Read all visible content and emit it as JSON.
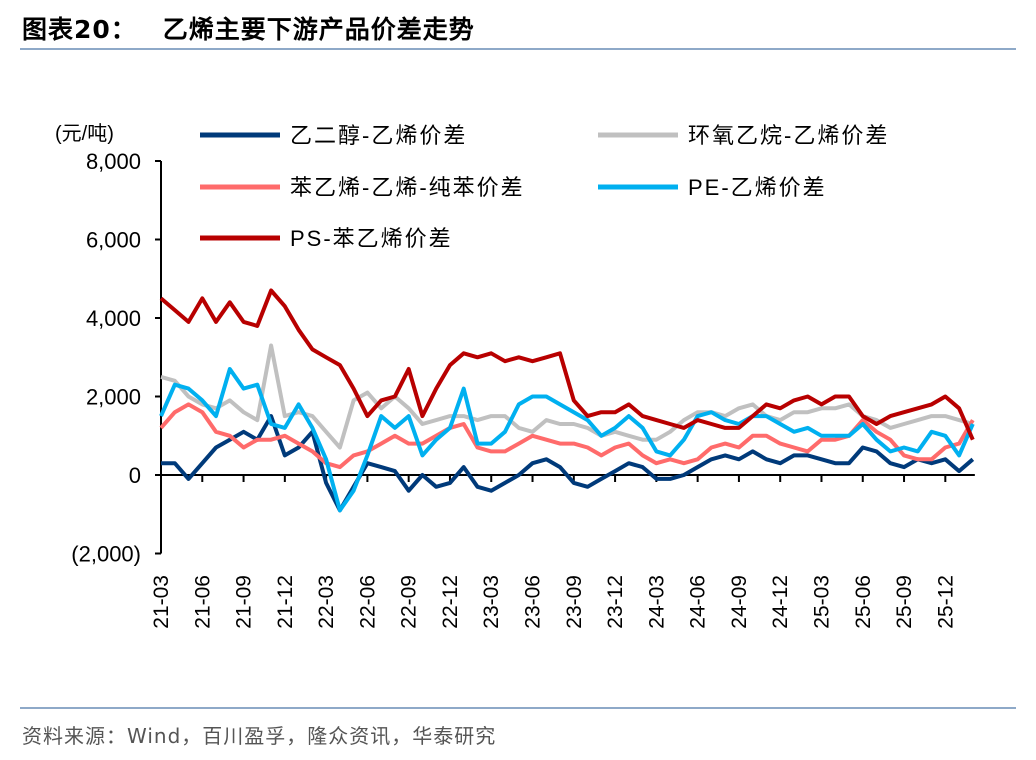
{
  "header": {
    "figure_no": "图表20：",
    "title": "乙烯主要下游产品价差走势"
  },
  "footer": {
    "source": "资料来源：Wind，百川盈孚，隆众资讯，华泰研究"
  },
  "chart_data": {
    "type": "line",
    "title": "乙烯主要下游产品价差走势",
    "ylabel": "(元/吨)",
    "xlabel": "",
    "ylim": [
      -2000,
      8000
    ],
    "yticks": [
      -2000,
      0,
      2000,
      4000,
      6000,
      8000
    ],
    "ytick_labels": [
      "(2,000)",
      "0",
      "2,000",
      "4,000",
      "6,000",
      "8,000"
    ],
    "xtick_labels": [
      "21-03",
      "21-06",
      "21-09",
      "21-12",
      "22-03",
      "22-06",
      "22-09",
      "22-12",
      "23-03",
      "23-06",
      "23-09",
      "23-12",
      "24-03",
      "24-06",
      "24-09",
      "24-12",
      "25-03",
      "25-06",
      "25-09",
      "25-12"
    ],
    "x_start": "21-03",
    "x_step": "1 month",
    "legend_position": "top",
    "grid": false,
    "series": [
      {
        "name": "乙二醇-乙烯价差",
        "color": "#003a7a",
        "values": [
          300,
          300,
          -100,
          300,
          700,
          900,
          1100,
          900,
          1500,
          500,
          700,
          1100,
          -200,
          -900,
          -300,
          300,
          200,
          100,
          -400,
          0,
          -300,
          -200,
          200,
          -300,
          -400,
          -200,
          0,
          300,
          400,
          200,
          -200,
          -300,
          -100,
          100,
          300,
          200,
          -100,
          -100,
          0,
          200,
          400,
          500,
          400,
          600,
          400,
          300,
          500,
          500,
          400,
          300,
          300,
          700,
          600,
          300,
          200,
          400,
          300,
          400,
          100,
          400
        ]
      },
      {
        "name": "环氧乙烷-乙烯价差",
        "color": "#c0c0c0",
        "values": [
          2500,
          2400,
          2000,
          1800,
          1700,
          1900,
          1600,
          1400,
          3300,
          1500,
          1600,
          1500,
          1100,
          700,
          1900,
          2100,
          1700,
          2000,
          1700,
          1300,
          1400,
          1500,
          1500,
          1400,
          1500,
          1500,
          1200,
          1100,
          1400,
          1300,
          1300,
          1200,
          1000,
          1100,
          1000,
          900,
          900,
          1100,
          1400,
          1600,
          1600,
          1500,
          1700,
          1800,
          1500,
          1400,
          1600,
          1600,
          1700,
          1700,
          1800,
          1500,
          1400,
          1200,
          1300,
          1400,
          1500,
          1500,
          1400,
          1300
        ]
      },
      {
        "name": "苯乙烯-乙烯-纯苯价差",
        "color": "#ff6b6b",
        "values": [
          1200,
          1600,
          1800,
          1600,
          1100,
          1000,
          700,
          900,
          900,
          1000,
          800,
          600,
          300,
          200,
          500,
          600,
          800,
          1000,
          800,
          800,
          1000,
          1200,
          1300,
          700,
          600,
          600,
          800,
          1000,
          900,
          800,
          800,
          700,
          500,
          700,
          800,
          500,
          300,
          400,
          300,
          400,
          700,
          800,
          700,
          1000,
          1000,
          800,
          700,
          600,
          900,
          900,
          1000,
          1400,
          1100,
          900,
          500,
          400,
          400,
          700,
          800,
          1400
        ]
      },
      {
        "name": "PE-乙烯价差",
        "color": "#00b0f0",
        "values": [
          1500,
          2300,
          2200,
          1900,
          1500,
          2700,
          2200,
          2300,
          1300,
          1200,
          1800,
          1200,
          400,
          -900,
          -400,
          500,
          1500,
          1200,
          1500,
          500,
          900,
          1200,
          2200,
          800,
          800,
          1100,
          1800,
          2000,
          2000,
          1800,
          1600,
          1400,
          1000,
          1200,
          1500,
          1200,
          600,
          500,
          900,
          1500,
          1600,
          1400,
          1300,
          1500,
          1500,
          1300,
          1100,
          1200,
          1000,
          1000,
          1000,
          1300,
          900,
          600,
          700,
          600,
          1100,
          1000,
          500,
          1300
        ]
      },
      {
        "name": "PS-苯乙烯价差",
        "color": "#b80000",
        "values": [
          4500,
          4200,
          3900,
          4500,
          3900,
          4400,
          3900,
          3800,
          4700,
          4300,
          3700,
          3200,
          3000,
          2800,
          2200,
          1500,
          1900,
          2000,
          2700,
          1500,
          2200,
          2800,
          3100,
          3000,
          3100,
          2900,
          3000,
          2900,
          3000,
          3100,
          1900,
          1500,
          1600,
          1600,
          1800,
          1500,
          1400,
          1300,
          1200,
          1400,
          1300,
          1200,
          1200,
          1500,
          1800,
          1700,
          1900,
          2000,
          1800,
          2000,
          2000,
          1500,
          1300,
          1500,
          1600,
          1700,
          1800,
          2000,
          1700,
          900
        ]
      }
    ]
  }
}
